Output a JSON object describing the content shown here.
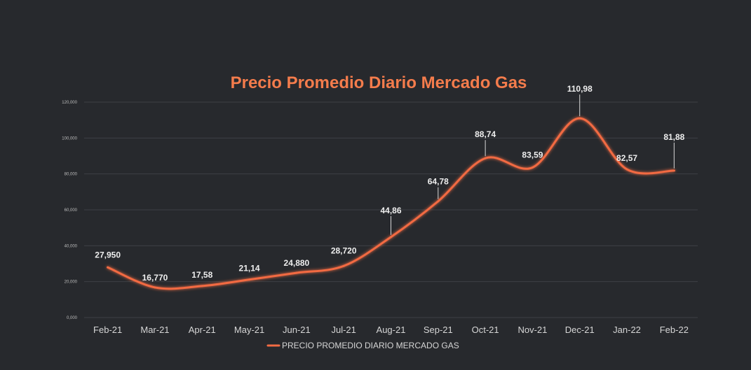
{
  "chart_data": {
    "type": "line",
    "title": "Precio Promedio Diario Mercado Gas",
    "categories": [
      "Feb-21",
      "Mar-21",
      "Apr-21",
      "May-21",
      "Jun-21",
      "Jul-21",
      "Aug-21",
      "Sep-21",
      "Oct-21",
      "Nov-21",
      "Dec-21",
      "Jan-22",
      "Feb-22"
    ],
    "series": [
      {
        "name": "PRECIO PROMEDIO DIARIO MERCADO GAS",
        "values": [
          27950,
          16770,
          17580,
          21140,
          24880,
          28720,
          44860,
          64780,
          88740,
          83590,
          110980,
          82570,
          81880
        ],
        "labels": [
          "27,950",
          "16,770",
          "17,58",
          "21,14",
          "24,880",
          "28,720",
          "44,86",
          "64,78",
          "88,74",
          "83,59",
          "110,98",
          "82,57",
          "81,88"
        ]
      }
    ],
    "ylim": [
      0,
      120000
    ],
    "yticks": [
      0,
      20000,
      40000,
      60000,
      80000,
      100000,
      120000
    ],
    "ytick_labels": [
      "0,000",
      "20,000",
      "40,000",
      "60,000",
      "80,000",
      "100,000",
      "120,000"
    ],
    "xlabel": "",
    "ylabel": "",
    "grid": true,
    "legend": "bottom-center",
    "colors": {
      "background": "#27292d",
      "line": "#f26b43",
      "title": "#f47c4c",
      "grid": "#3d4045",
      "text": "#d6d6d6"
    }
  }
}
